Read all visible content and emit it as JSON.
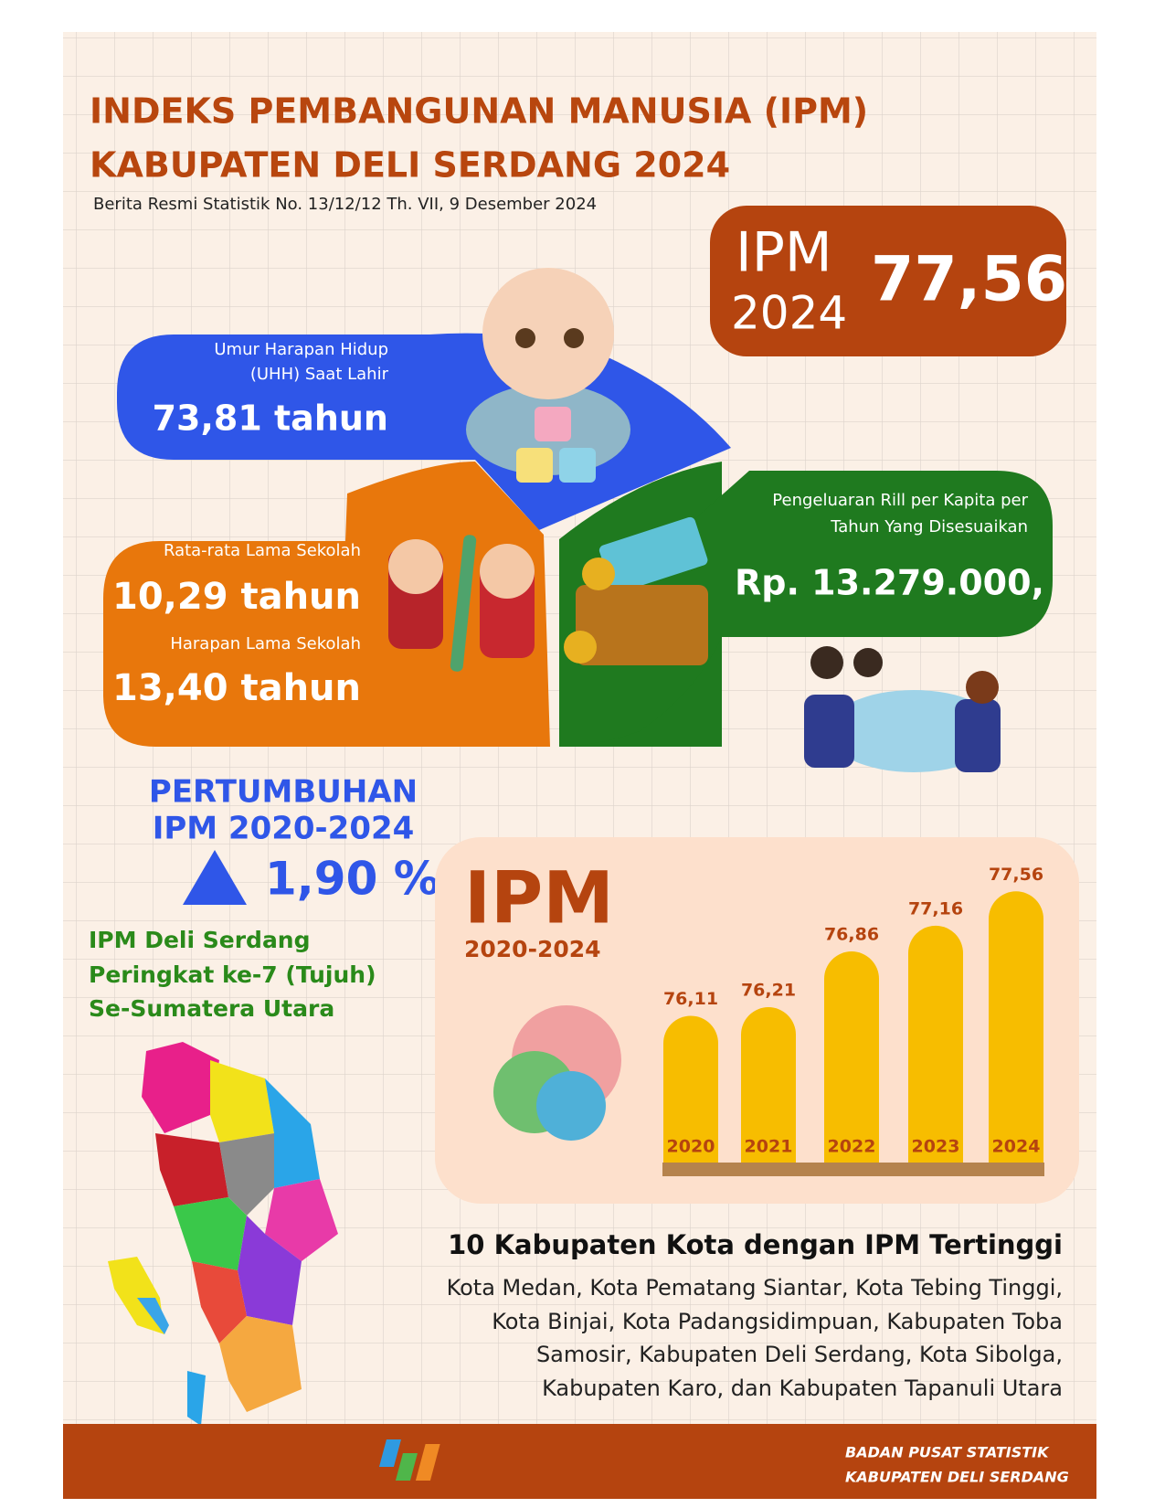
{
  "header": {
    "title_line1": "INDEKS PEMBANGUNAN MANUSIA (IPM)",
    "title_line2": "KABUPATEN DELI SERDANG 2024",
    "subtitle": "Berita Resmi Statistik No. 13/12/12 Th. VII, 9 Desember 2024"
  },
  "ipm_box": {
    "label": "IPM",
    "year": "2024",
    "value": "77,56"
  },
  "indicators": {
    "uhh": {
      "label_lines": [
        "Umur Harapan Hidup",
        "(UHH) Saat Lahir"
      ],
      "value": "73,81 tahun"
    },
    "rls": {
      "label": "Rata-rata Lama Sekolah",
      "value": "10,29 tahun"
    },
    "hls": {
      "label": "Harapan Lama Sekolah",
      "value": "13,40 tahun"
    },
    "expenditure": {
      "label_lines": [
        "Pengeluaran Rill per Kapita per",
        "Tahun Yang Disesuaikan"
      ],
      "value": "Rp. 13.279.000,"
    }
  },
  "growth": {
    "title_line1": "PERTUMBUHAN",
    "title_line2": "IPM 2020-2024",
    "value": "1,90 %"
  },
  "rank": {
    "lines": [
      "IPM Deli Serdang",
      "Peringkat ke-7 (Tujuh)",
      "Se-Sumatera Utara"
    ]
  },
  "chart_data": {
    "type": "bar",
    "title": "IPM",
    "subtitle": "2020-2024",
    "categories": [
      "2020",
      "2021",
      "2022",
      "2023",
      "2024"
    ],
    "values": [
      76.11,
      76.21,
      76.86,
      77.16,
      77.56
    ],
    "value_labels": [
      "76,11",
      "76,21",
      "76,86",
      "77,16",
      "77,56"
    ],
    "color": "#f7bd00",
    "ylim": [
      74.4,
      78
    ]
  },
  "top10": {
    "title": "10 Kabupaten Kota dengan IPM Tertinggi",
    "lines": [
      "Kota Medan, Kota Pematang Siantar, Kota Tebing Tinggi,",
      "Kota Binjai, Kota Padangsidimpuan, Kabupaten Toba",
      "Samosir, Kabupaten Deli Serdang, Kota Sibolga,",
      "Kabupaten Karo, dan Kabupaten Tapanuli Utara"
    ]
  },
  "footer": {
    "line1": "BADAN PUSAT STATISTIK",
    "line2": "KABUPATEN DELI SERDANG"
  }
}
